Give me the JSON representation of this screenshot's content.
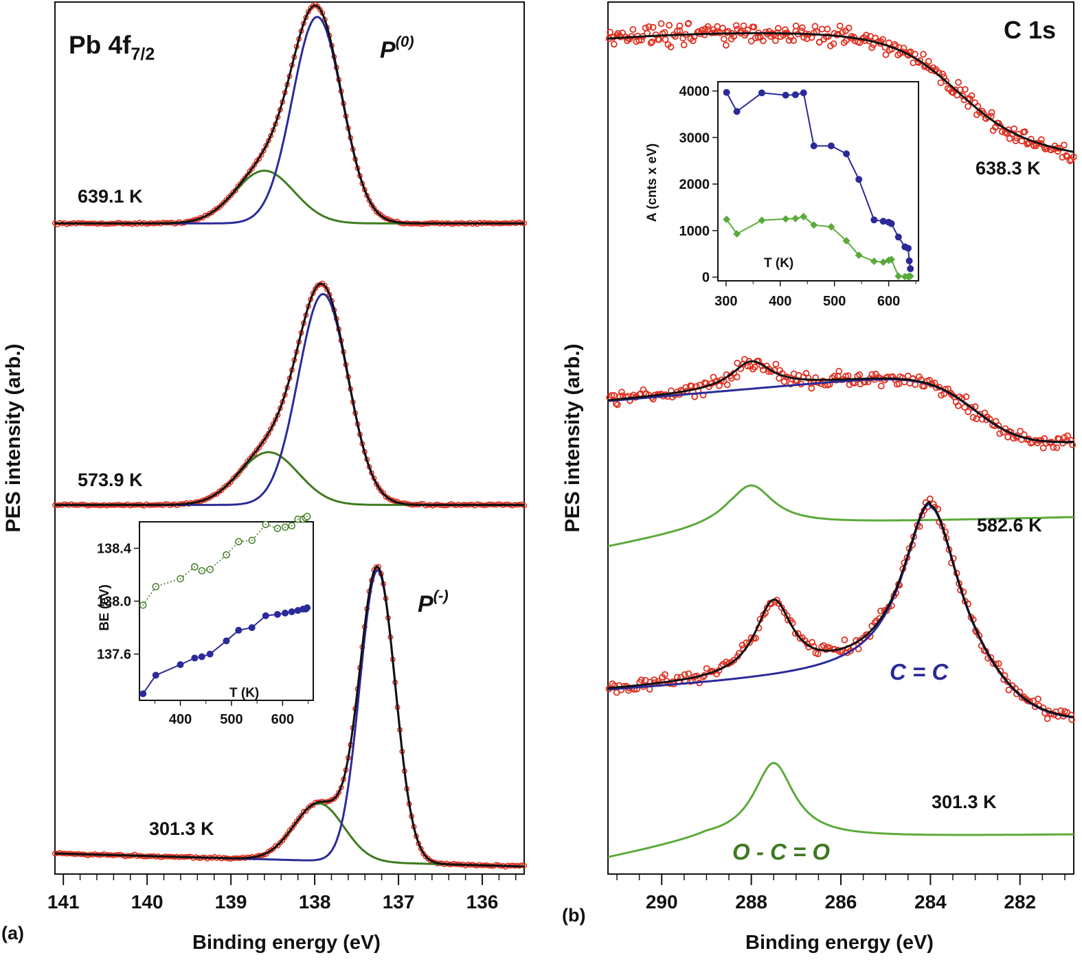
{
  "chart_data": [
    {
      "id": "a",
      "type": "line",
      "panel_label": "(a)",
      "title": "Pb 4f",
      "title_sub": "7/2",
      "xlabel": "Binding energy (eV)",
      "ylabel": "PES intensity (arb.)",
      "xlim": [
        141.1,
        135.5
      ],
      "xticks": [
        141,
        140,
        139,
        138,
        137,
        136
      ],
      "components": {
        "data": "#e03020",
        "fit": "#111111",
        "P0": "#2a2a9a",
        "Pminus": "#3e7a1f"
      },
      "annotations": [
        {
          "main": "P",
          "sup": "(0)"
        },
        {
          "main": "P",
          "sup": "(-)"
        }
      ],
      "spectra": [
        {
          "label": "639.1 K",
          "baseline": 0.03,
          "P0_center": 137.97,
          "P0_height": 0.94,
          "P0_width": 0.42,
          "Pminus_center": 138.6,
          "Pminus_height": 0.24,
          "Pminus_width": 0.5
        },
        {
          "label": "573.9 K",
          "baseline": 0.03,
          "P0_center": 137.9,
          "P0_height": 0.96,
          "P0_width": 0.42,
          "Pminus_center": 138.55,
          "Pminus_height": 0.24,
          "Pminus_width": 0.5
        },
        {
          "label": "301.3 K",
          "baseline": 0.05,
          "P0_center": 137.25,
          "P0_height": 1.12,
          "P0_width": 0.3,
          "Pminus_center": 137.95,
          "Pminus_height": 0.22,
          "Pminus_width": 0.42
        }
      ],
      "inset": {
        "ylabel": "BE (eV)",
        "xlabel": "T (K)",
        "xlim": [
          320,
          660
        ],
        "ylim": [
          137.25,
          138.6
        ],
        "xticks": [
          400,
          500,
          600
        ],
        "yticks": [
          137.6,
          138.0,
          138.4
        ],
        "series": [
          {
            "name": "P(0)",
            "style": "dotted-open",
            "color": "#3e7a1f",
            "x": [
              327,
              352,
              400,
              428,
              442,
              458,
              490,
              514,
              540,
              567,
              590,
              605,
              618,
              630,
              640,
              645,
              648
            ],
            "y": [
              137.97,
              138.11,
              138.17,
              138.26,
              138.23,
              138.24,
              138.35,
              138.45,
              138.46,
              138.58,
              138.55,
              138.56,
              138.57,
              138.62,
              138.62,
              138.63,
              138.64
            ]
          },
          {
            "name": "P(-)",
            "style": "solid-filled",
            "color": "#2a2a9a",
            "x": [
              327,
              352,
              400,
              428,
              442,
              458,
              490,
              514,
              540,
              567,
              590,
              605,
              618,
              630,
              640,
              645,
              648
            ],
            "y": [
              137.3,
              137.44,
              137.52,
              137.57,
              137.58,
              137.6,
              137.7,
              137.78,
              137.8,
              137.89,
              137.9,
              137.91,
              137.92,
              137.93,
              137.94,
              137.94,
              137.95
            ]
          }
        ]
      }
    },
    {
      "id": "b",
      "type": "line",
      "panel_label": "(b)",
      "title": "C 1s",
      "xlabel": "Binding energy (eV)",
      "ylabel": "PES intensity (arb.)",
      "xlim": [
        291.2,
        280.8
      ],
      "xticks": [
        290,
        288,
        286,
        284,
        282
      ],
      "components": {
        "data": "#e03020",
        "fit": "#111111",
        "C=C": "#2a2a9a",
        "O-C=O": "#5aaa3a"
      },
      "annotations": [
        {
          "text": "C = C",
          "color": "#2a2a9a"
        },
        {
          "text": "O - C = O",
          "color": "#3e7a1f"
        }
      ],
      "spectra": [
        {
          "label": "638.3 K",
          "fit": "plateau"
        },
        {
          "label": "582.6 K",
          "CC_center": 284.6,
          "OCO_center": 288.0
        },
        {
          "label": "301.3 K",
          "CC_center": 284.0,
          "OCO_center": 287.5
        }
      ],
      "inset": {
        "ylabel": "A (cnts x eV)",
        "xlabel": "T (K)",
        "xlim": [
          285,
          655
        ],
        "ylim": [
          -80,
          4200
        ],
        "xticks": [
          300,
          400,
          500,
          600
        ],
        "yticks": [
          0,
          1000,
          2000,
          3000,
          4000
        ],
        "series": [
          {
            "name": "C=C",
            "marker": "circle",
            "color": "#2a2a9a",
            "x": [
              301,
              320,
              366,
              410,
              428,
              443,
              462,
              494,
              522,
              545,
              573,
              590,
              600,
              605,
              618,
              630,
              636,
              638,
              640
            ],
            "y": [
              3970,
              3560,
              3960,
              3910,
              3920,
              3960,
              2820,
              2820,
              2650,
              2100,
              1230,
              1200,
              1180,
              1150,
              860,
              650,
              620,
              350,
              180
            ]
          },
          {
            "name": "O-C=O",
            "marker": "diamond",
            "color": "#5aaa3a",
            "x": [
              301,
              320,
              366,
              410,
              428,
              443,
              462,
              494,
              522,
              545,
              573,
              590,
              600,
              605,
              618,
              630,
              636,
              638,
              640
            ],
            "y": [
              1240,
              930,
              1220,
              1250,
              1260,
              1300,
              1120,
              1080,
              780,
              470,
              340,
              320,
              360,
              380,
              20,
              10,
              10,
              15,
              20
            ]
          }
        ]
      }
    }
  ]
}
